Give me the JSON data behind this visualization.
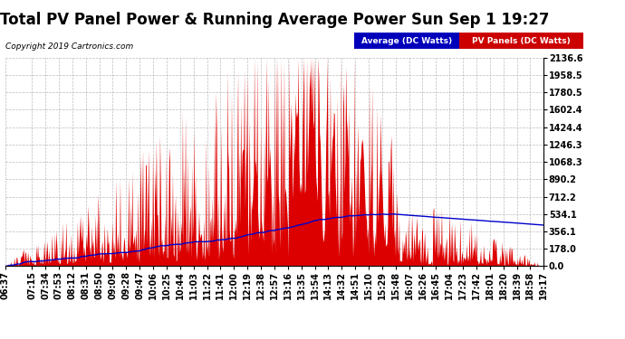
{
  "title": "Total PV Panel Power & Running Average Power Sun Sep 1 19:27",
  "copyright": "Copyright 2019 Cartronics.com",
  "legend_avg": "Average (DC Watts)",
  "legend_pv": "PV Panels (DC Watts)",
  "ymax": 2136.6,
  "yticks": [
    0.0,
    178.0,
    356.1,
    534.1,
    712.2,
    890.2,
    1068.3,
    1246.3,
    1424.4,
    1602.4,
    1780.5,
    1958.5,
    2136.6
  ],
  "bg_color": "#ffffff",
  "plot_bg_color": "#ffffff",
  "grid_color": "#aaaaaa",
  "fill_color": "#dd0000",
  "avg_line_color": "#0000cc",
  "title_fontsize": 12,
  "tick_fontsize": 7,
  "tick_labels": [
    "06:37",
    "07:15",
    "07:34",
    "07:53",
    "08:12",
    "08:31",
    "08:50",
    "09:09",
    "09:28",
    "09:47",
    "10:06",
    "10:25",
    "10:44",
    "11:03",
    "11:22",
    "11:41",
    "12:00",
    "12:19",
    "12:38",
    "12:57",
    "13:16",
    "13:35",
    "13:54",
    "14:13",
    "14:32",
    "14:51",
    "15:10",
    "15:29",
    "15:48",
    "16:07",
    "16:26",
    "16:45",
    "17:04",
    "17:23",
    "17:42",
    "18:01",
    "18:20",
    "18:39",
    "18:58",
    "19:17"
  ]
}
